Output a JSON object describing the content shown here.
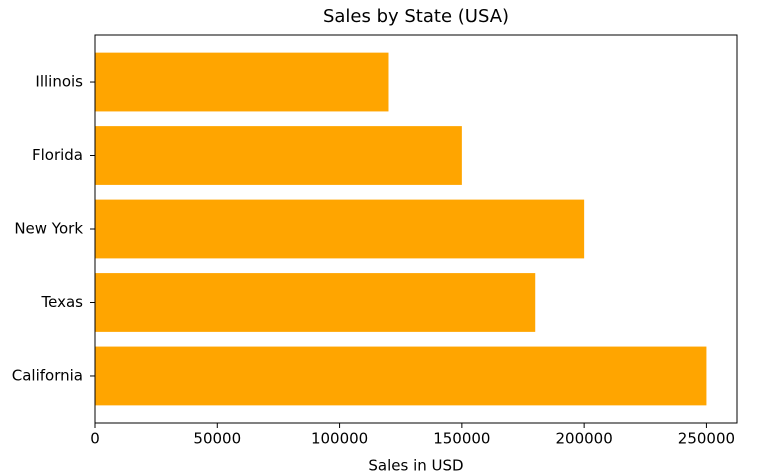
{
  "chart_data": {
    "type": "barh",
    "title": "Sales by State (USA)",
    "x_label": "Sales in USD",
    "categories": [
      "California",
      "Texas",
      "New York",
      "Florida",
      "Illinois"
    ],
    "values": [
      250000,
      180000,
      200000,
      150000,
      120000
    ],
    "color": "#ffa500",
    "xlim": [
      0,
      262500
    ],
    "xticks": [
      0,
      50000,
      100000,
      150000,
      200000,
      250000
    ]
  }
}
